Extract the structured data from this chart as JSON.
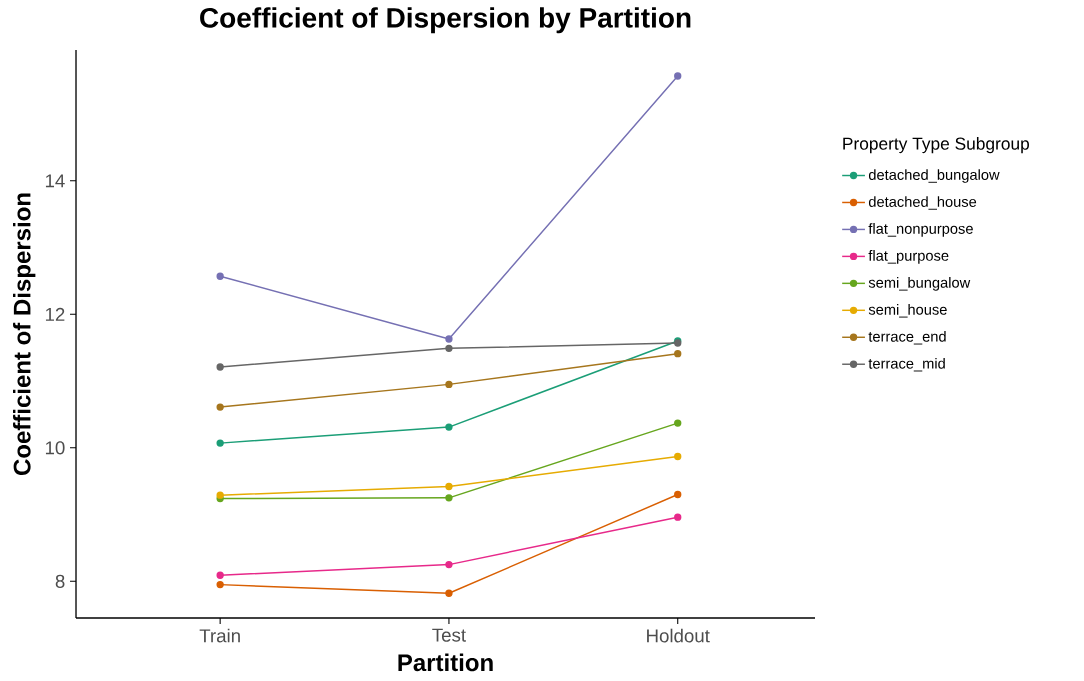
{
  "chart_data": {
    "type": "line",
    "title": "Coefficient of Dispersion by Partition",
    "xlabel": "Partition",
    "ylabel": "Coefficient of Dispersion",
    "legend_title": "Property Type Subgroup",
    "categories": [
      "Train",
      "Test",
      "Holdout"
    ],
    "series": [
      {
        "name": "detached_bungalow",
        "color": "#1b9e77",
        "values": [
          10.07,
          10.31,
          11.6
        ]
      },
      {
        "name": "detached_house",
        "color": "#d95f02",
        "values": [
          7.95,
          7.82,
          9.3
        ]
      },
      {
        "name": "flat_nonpurpose",
        "color": "#7570b3",
        "values": [
          12.57,
          11.63,
          15.57
        ]
      },
      {
        "name": "flat_purpose",
        "color": "#e7298a",
        "values": [
          8.09,
          8.25,
          8.96
        ]
      },
      {
        "name": "semi_bungalow",
        "color": "#66a61e",
        "values": [
          9.24,
          9.25,
          10.37
        ]
      },
      {
        "name": "semi_house",
        "color": "#e6ab02",
        "values": [
          9.29,
          9.42,
          9.87
        ]
      },
      {
        "name": "terrace_end",
        "color": "#a6761d",
        "values": [
          10.61,
          10.95,
          11.41
        ]
      },
      {
        "name": "terrace_mid",
        "color": "#666666",
        "values": [
          11.21,
          11.49,
          11.57
        ]
      }
    ],
    "ylim": [
      7.45,
      15.96
    ],
    "yticks": [
      8,
      10,
      12,
      14
    ],
    "grid": false,
    "legend": "right",
    "marker": "circle",
    "line_style": "solid"
  }
}
